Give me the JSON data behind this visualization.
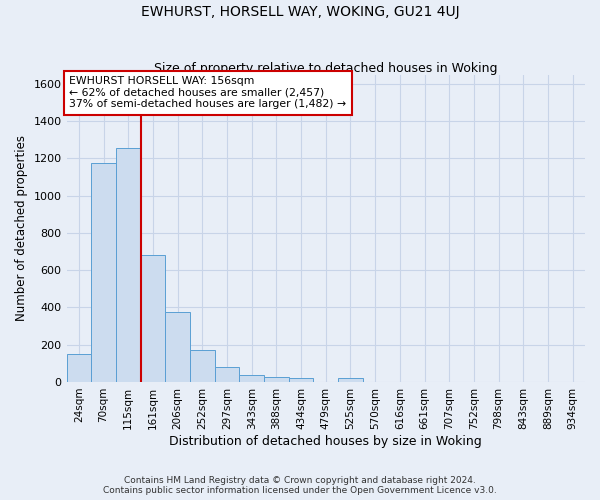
{
  "title": "EWHURST, HORSELL WAY, WOKING, GU21 4UJ",
  "subtitle": "Size of property relative to detached houses in Woking",
  "xlabel": "Distribution of detached houses by size in Woking",
  "ylabel": "Number of detached properties",
  "bar_categories": [
    "24sqm",
    "70sqm",
    "115sqm",
    "161sqm",
    "206sqm",
    "252sqm",
    "297sqm",
    "343sqm",
    "388sqm",
    "434sqm",
    "479sqm",
    "525sqm",
    "570sqm",
    "616sqm",
    "661sqm",
    "707sqm",
    "752sqm",
    "798sqm",
    "843sqm",
    "889sqm",
    "934sqm"
  ],
  "bar_values": [
    150,
    1175,
    1255,
    680,
    375,
    170,
    80,
    35,
    25,
    20,
    0,
    20,
    0,
    0,
    0,
    0,
    0,
    0,
    0,
    0,
    0
  ],
  "bar_color": "#ccdcef",
  "bar_edge_color": "#5a9fd4",
  "annotation_line1": "EWHURST HORSELL WAY: 156sqm",
  "annotation_line2": "← 62% of detached houses are smaller (2,457)",
  "annotation_line3": "37% of semi-detached houses are larger (1,482) →",
  "annotation_box_color": "#ffffff",
  "annotation_box_edge": "#cc0000",
  "line_color": "#cc0000",
  "line_x_index": 3,
  "ylim": [
    0,
    1650
  ],
  "yticks": [
    0,
    200,
    400,
    600,
    800,
    1000,
    1200,
    1400,
    1600
  ],
  "footer1": "Contains HM Land Registry data © Crown copyright and database right 2024.",
  "footer2": "Contains public sector information licensed under the Open Government Licence v3.0.",
  "bg_color": "#e8eef7",
  "plot_bg_color": "#e8eef7",
  "grid_color": "#c8d4e8",
  "title_fontsize": 10,
  "subtitle_fontsize": 9,
  "title_fontweight": "normal"
}
